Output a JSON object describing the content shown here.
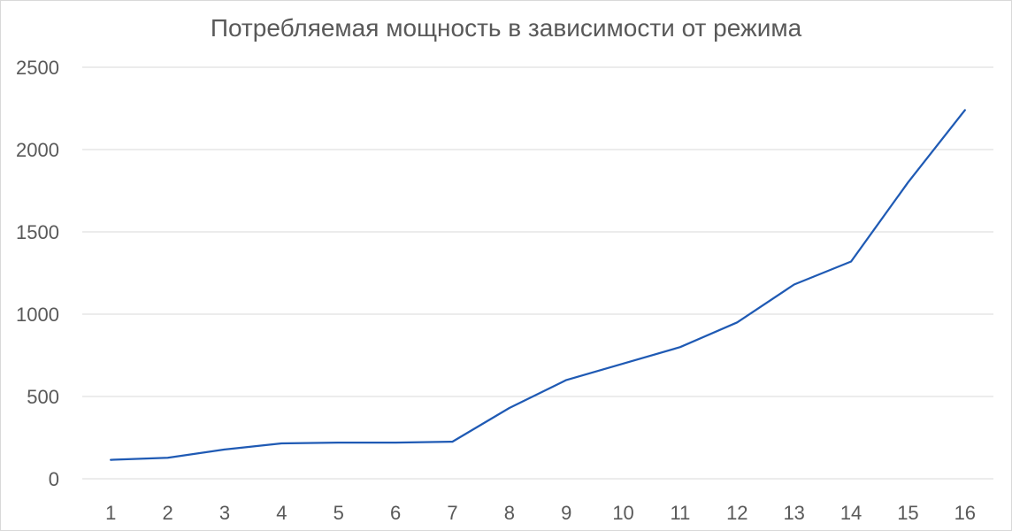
{
  "chart_data": {
    "type": "line",
    "title": "Потребляемая мощность в зависимости от режима",
    "xlabel": "",
    "ylabel": "",
    "categories": [
      "1",
      "2",
      "3",
      "4",
      "5",
      "6",
      "7",
      "8",
      "9",
      "10",
      "11",
      "12",
      "13",
      "14",
      "15",
      "16"
    ],
    "series": [
      {
        "values": [
          115,
          128,
          178,
          215,
          220,
          220,
          225,
          430,
          600,
          700,
          800,
          950,
          1180,
          1320,
          1800,
          2240
        ],
        "color": "#1f5ab4"
      }
    ],
    "ylim": [
      0,
      2500
    ],
    "yticks": [
      0,
      500,
      1000,
      1500,
      2000,
      2500
    ],
    "grid": true,
    "legend": "none"
  }
}
